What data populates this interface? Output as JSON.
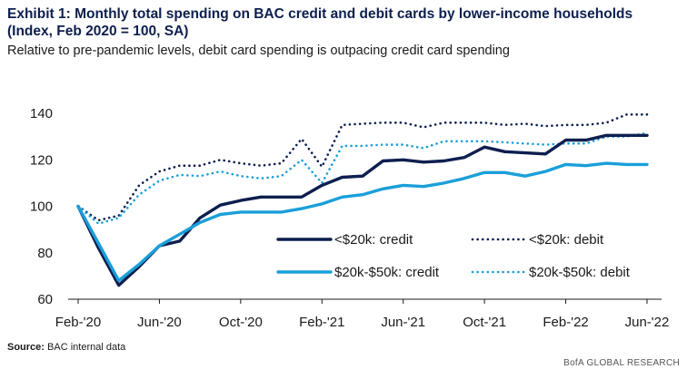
{
  "header": {
    "title": "Exhibit 1: Monthly total spending on BAC credit and debit cards by lower-income households (Index, Feb 2020 = 100, SA)",
    "subtitle": "Relative to pre-pandemic levels, debit card spending is outpacing credit card spending"
  },
  "footer": {
    "source_label": "Source:",
    "source_text": "BAC internal data",
    "brand": "BofA GLOBAL RESEARCH"
  },
  "chart_data": {
    "type": "line",
    "x": [
      "Feb-'20",
      "Mar-'20",
      "Apr-'20",
      "May-'20",
      "Jun-'20",
      "Jul-'20",
      "Aug-'20",
      "Sep-'20",
      "Oct-'20",
      "Nov-'20",
      "Dec-'20",
      "Jan-'21",
      "Feb-'21",
      "Mar-'21",
      "Apr-'21",
      "May-'21",
      "Jun-'21",
      "Jul-'21",
      "Aug-'21",
      "Sep-'21",
      "Oct-'21",
      "Nov-'21",
      "Dec-'21",
      "Jan-'22",
      "Feb-'22",
      "Mar-'22",
      "Apr-'22",
      "May-'22",
      "Jun-'22"
    ],
    "xticks": [
      "Feb-'20",
      "Jun-'20",
      "Oct-'20",
      "Feb-'21",
      "Jun-'21",
      "Oct-'21",
      "Feb-'22",
      "Jun-'22"
    ],
    "yticks": [
      60,
      80,
      100,
      120,
      140
    ],
    "ylim": [
      60,
      143
    ],
    "grid": false,
    "series": [
      {
        "name": "<$20k: credit",
        "color": "#0d1f4f",
        "style": "solid",
        "values": [
          100,
          82,
          66,
          74,
          83,
          85,
          95,
          100.5,
          102.5,
          104,
          104,
          104,
          109,
          112.5,
          113,
          119.5,
          120,
          119,
          119.5,
          121,
          125.5,
          123.5,
          123,
          122.5,
          128.5,
          128.5,
          130.5,
          130.5,
          130.5
        ]
      },
      {
        "name": "<$20k: debit",
        "color": "#0d1f4f",
        "style": "dotted",
        "values": [
          100,
          94,
          96,
          109,
          115,
          117.5,
          117.5,
          120,
          118.5,
          117.5,
          118.5,
          129,
          117,
          135,
          135.5,
          136,
          136,
          134,
          136,
          136,
          136,
          135,
          135.5,
          134.5,
          135,
          135,
          136,
          139.5,
          139.5
        ]
      },
      {
        "name": "$20k-$50k: credit",
        "color": "#1a9fd9",
        "style": "solid",
        "values": [
          100,
          84,
          68,
          75,
          83,
          88,
          93,
          96.5,
          97.5,
          97.5,
          97.5,
          99,
          101,
          104,
          105,
          107.5,
          109,
          108.5,
          110,
          112,
          114.5,
          114.5,
          113,
          115,
          118,
          117.5,
          118.5,
          118,
          118
        ]
      },
      {
        "name": "$20k-$50k: debit",
        "color": "#1a9fd9",
        "style": "dotted",
        "values": [
          100,
          92.5,
          95,
          105,
          111,
          113.5,
          113,
          115,
          113,
          112,
          113,
          120,
          110,
          126,
          126,
          126.5,
          126.5,
          125,
          128,
          128,
          128,
          127.5,
          127,
          126.5,
          127,
          127,
          130,
          130,
          131.5
        ]
      }
    ],
    "legend_placement": "bottom-right"
  }
}
